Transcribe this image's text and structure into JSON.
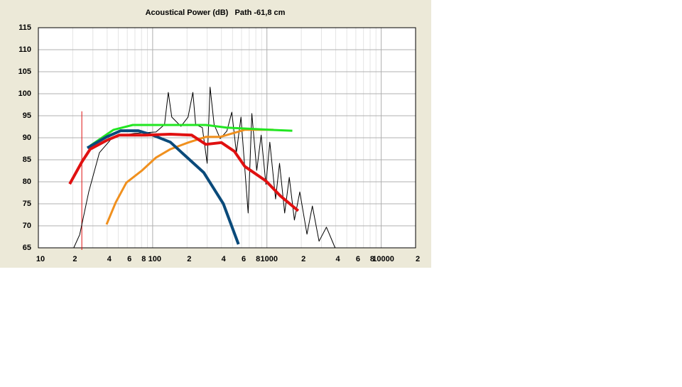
{
  "chart_data": {
    "type": "line",
    "title": "Acoustical Power (dB)   Path -61,8 cm",
    "xscale": "log",
    "xlim": [
      10,
      20000
    ],
    "ylim": [
      65,
      115
    ],
    "yticks": [
      65,
      70,
      75,
      80,
      85,
      90,
      95,
      100,
      105,
      110,
      115
    ],
    "xticks": [
      10,
      {
        "value": 20,
        "label": "2"
      },
      {
        "value": 40,
        "label": "4"
      },
      {
        "value": 60,
        "label": "6"
      },
      {
        "value": 80,
        "label": "8"
      },
      100,
      {
        "value": 200,
        "label": "2"
      },
      {
        "value": 400,
        "label": "4"
      },
      {
        "value": 600,
        "label": "6"
      },
      {
        "value": 800,
        "label": "8"
      },
      1000,
      {
        "value": 2000,
        "label": "2"
      },
      {
        "value": 4000,
        "label": "4"
      },
      {
        "value": 6000,
        "label": "6"
      },
      {
        "value": 8000,
        "label": "8"
      },
      10000,
      {
        "value": 20000,
        "label": "2"
      }
    ],
    "xminorticks": [
      30,
      50,
      70,
      90,
      300,
      500,
      700,
      900,
      3000,
      5000,
      7000,
      9000
    ],
    "grid": true,
    "markers": [
      {
        "x": 24,
        "color": "#e01010",
        "range": [
          65,
          96
        ]
      }
    ],
    "series": [
      {
        "color": "#000000",
        "width": 1,
        "x": [
          20.4,
          23,
          27.6,
          34.2,
          45.5,
          70,
          107,
          127,
          137,
          147,
          177,
          204,
          225,
          238,
          272,
          300,
          318,
          345,
          390,
          446,
          493,
          540,
          593,
          685,
          738,
          815,
          890,
          980,
          1060,
          1190,
          1290,
          1430,
          1570,
          1740,
          1940,
          2240,
          2500,
          2860,
          3320,
          3950
        ],
        "values": [
          65,
          68,
          77.7,
          86.6,
          90.3,
          91,
          91.3,
          93,
          100.3,
          94.7,
          92.6,
          94.7,
          100.3,
          93,
          92.3,
          84.2,
          101.5,
          93,
          89.8,
          91.5,
          95.8,
          86.6,
          94.7,
          72.9,
          95.5,
          82.6,
          90.6,
          79.4,
          89,
          76.1,
          84.2,
          72.9,
          81,
          71.3,
          77.7,
          68.1,
          74.5,
          66.5,
          69.7,
          65
        ]
      },
      {
        "color": "#f0901e",
        "width": 3,
        "x": [
          39.5,
          47.5,
          58.9,
          80.9,
          107,
          143,
          204,
          292,
          390,
          640,
          1140
        ],
        "values": [
          70.3,
          75.3,
          79.8,
          82.6,
          85.5,
          87.4,
          88.9,
          90.2,
          90.2,
          91.8,
          91.8
        ]
      },
      {
        "color": "#22e622",
        "width": 3,
        "x": [
          28.4,
          45.5,
          67,
          292,
          446,
          1060,
          1670
        ],
        "values": [
          88.2,
          91.8,
          92.9,
          92.9,
          92.3,
          91.8,
          91.6
        ]
      },
      {
        "color": "#0a4a7a",
        "width": 4,
        "x": [
          26.8,
          39.5,
          52.6,
          75,
          100,
          143,
          195,
          280,
          416,
          564
        ],
        "values": [
          87.7,
          90.2,
          91.6,
          91.6,
          90.6,
          89,
          85.8,
          82.1,
          75,
          65.8
        ]
      },
      {
        "color": "#e01010",
        "width": 4,
        "x": [
          18.8,
          24,
          28.4,
          39.5,
          51,
          86.6,
          143,
          220,
          292,
          400,
          520,
          640,
          980,
          1310,
          1880
        ],
        "values": [
          79.5,
          84.5,
          87.4,
          89.4,
          90.6,
          90.6,
          90.8,
          90.6,
          88.5,
          88.9,
          86.9,
          83.5,
          80.2,
          76.8,
          73.4
        ]
      }
    ]
  }
}
